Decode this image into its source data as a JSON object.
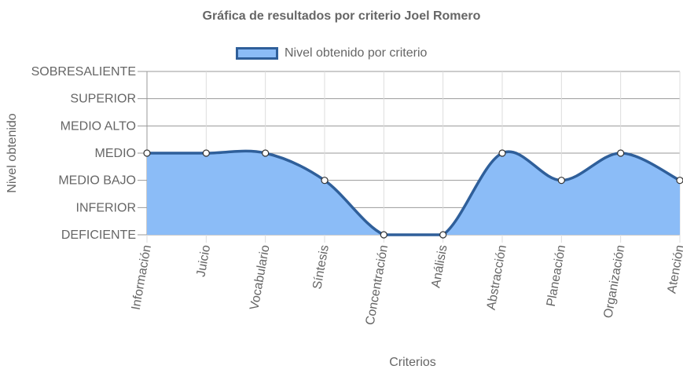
{
  "chart_data": {
    "type": "area",
    "title": "Gráfica de resultados por criterio Joel Romero",
    "xlabel": "Criterios",
    "ylabel": "Nivel obtenido",
    "categories": [
      "Información",
      "Juicio",
      "Vocabulario",
      "Síntesis",
      "Concentración",
      "Análisis",
      "Abstracción",
      "Planeación",
      "Organización",
      "Atención"
    ],
    "y_levels": [
      "DEFICIENTE",
      "INFERIOR",
      "MEDIO BAJO",
      "MEDIO",
      "MEDIO ALTO",
      "SUPERIOR",
      "SOBRESALIENTE"
    ],
    "ylim": [
      0,
      6
    ],
    "series": [
      {
        "name": "Nivel obtenido por criterio",
        "values": [
          3,
          3,
          3,
          2,
          0,
          0,
          3,
          2,
          3,
          2
        ]
      }
    ],
    "colors": {
      "fill": "#8bbcf7",
      "line": "#2f5f9a",
      "grid": "#999999",
      "point_fill": "#ffffff",
      "point_stroke": "#333333"
    },
    "legend_position": "top",
    "grid": true
  }
}
